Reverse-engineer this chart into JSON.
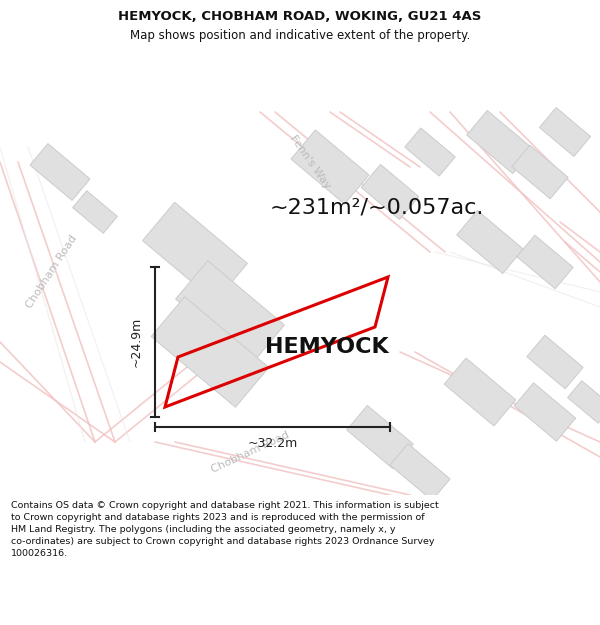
{
  "title": "HEMYOCK, CHOBHAM ROAD, WOKING, GU21 4AS",
  "subtitle": "Map shows position and indicative extent of the property.",
  "area_text": "~231m²/~0.057ac.",
  "property_name": "HEMYOCK",
  "dim_width": "~32.2m",
  "dim_height": "~24.9m",
  "footer_text": "Contains OS data © Crown copyright and database right 2021. This information is subject\nto Crown copyright and database rights 2023 and is reproduced with the permission of\nHM Land Registry. The polygons (including the associated geometry, namely x, y\nco-ordinates) are subject to Crown copyright and database rights 2023 Ordnance Survey\n100026316.",
  "bg_color": "#f8f8f8",
  "road_color": "#f2c4c4",
  "road_color2": "#e8e8e8",
  "building_color": "#e0e0e0",
  "building_edge": "#cccccc",
  "property_outline_color": "#dd0000",
  "dimension_color": "#222222",
  "street_label_color": "#bbbbbb",
  "title_fontsize": 9.5,
  "subtitle_fontsize": 8.5,
  "area_fontsize": 16,
  "property_fontsize": 16,
  "dim_fontsize": 9,
  "street_fontsize": 8
}
